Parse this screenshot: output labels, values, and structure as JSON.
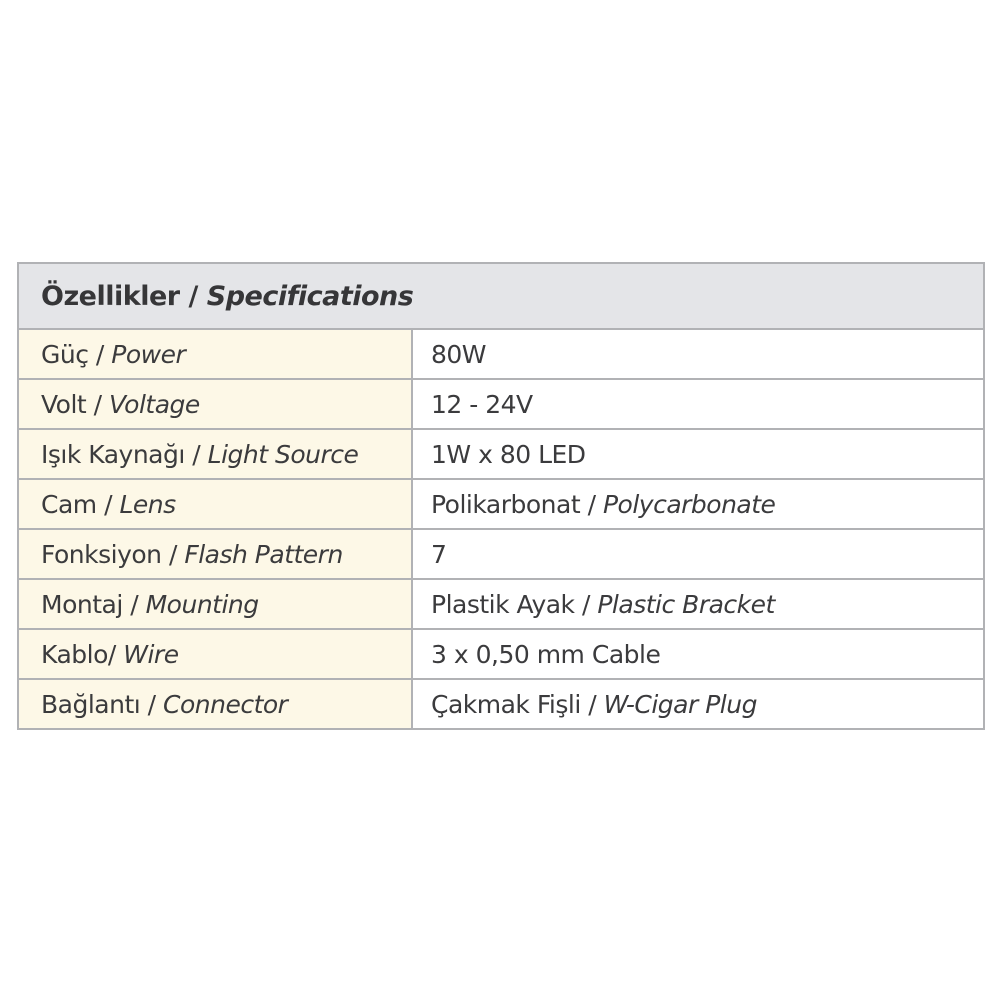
{
  "header": {
    "tr": "Özellikler / ",
    "en": "Specifications"
  },
  "rows": [
    {
      "tr": "Güç / ",
      "en": "Power",
      "value": "80W",
      "value_en": ""
    },
    {
      "tr": "Volt / ",
      "en": "Voltage",
      "value": "12 - 24V",
      "value_en": ""
    },
    {
      "tr": "Işık Kaynağı / ",
      "en": "Light Source",
      "value": "1W x 80 LED",
      "value_en": ""
    },
    {
      "tr": "Cam / ",
      "en": "Lens",
      "value": "Polikarbonat / ",
      "value_en": "Polycarbonate"
    },
    {
      "tr": "Fonksiyon / ",
      "en": "Flash Pattern",
      "value": "7",
      "value_en": ""
    },
    {
      "tr": "Montaj / ",
      "en": "Mounting",
      "value": "Plastik Ayak / ",
      "value_en": "Plastic Bracket"
    },
    {
      "tr": "Kablo/ ",
      "en": "Wire",
      "value": "3 x 0,50 mm Cable",
      "value_en": ""
    },
    {
      "tr": "Bağlantı / ",
      "en": "Connector",
      "value": "Çakmak Fişli / ",
      "value_en": "W-Cigar Plug"
    }
  ]
}
